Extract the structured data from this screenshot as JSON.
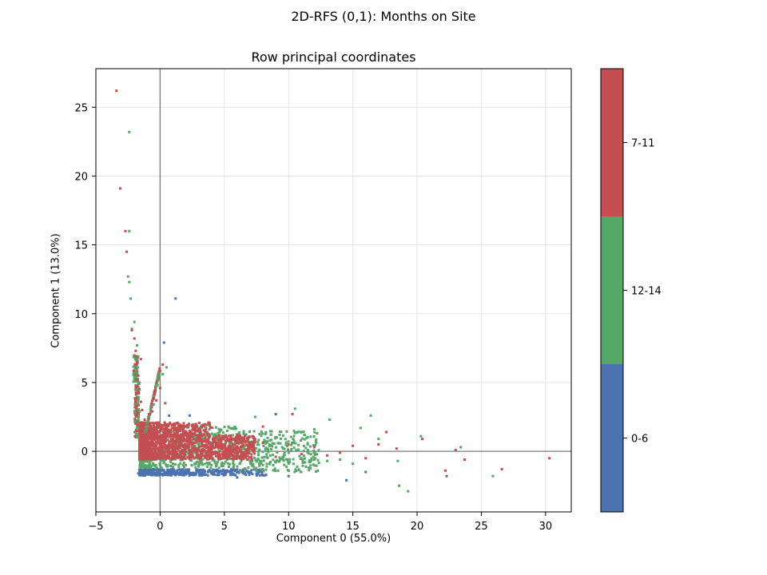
{
  "chart_data": {
    "type": "scatter",
    "suptitle": "2D-RFS (0,1): Months on Site",
    "title": "Row principal coordinates",
    "xlabel": "Component 0 (55.0%)",
    "ylabel": "Component 1 (13.0%)",
    "xlim": [
      -5,
      32
    ],
    "ylim": [
      -4.4,
      27.8
    ],
    "xticks": [
      -5,
      0,
      5,
      10,
      15,
      20,
      25,
      30
    ],
    "yticks": [
      0,
      5,
      10,
      15,
      20,
      25
    ],
    "grid": true,
    "reference_lines": {
      "x": 0,
      "y": 0
    },
    "colorbar": {
      "categories": [
        "0-6",
        "12-14",
        "7-11"
      ],
      "colors": [
        "#4c72b0",
        "#55a868",
        "#c44e52"
      ]
    },
    "series": [
      {
        "name": "0-6",
        "color": "#4c72b0",
        "points": [
          [
            1.2,
            11.1
          ],
          [
            0.3,
            7.9
          ],
          [
            -1.7,
            -1.6
          ],
          [
            -1.4,
            -1.4
          ],
          [
            -1.0,
            -1.5
          ],
          [
            -0.5,
            -1.6
          ],
          [
            0.0,
            -1.5
          ],
          [
            0.5,
            -1.7
          ],
          [
            1.0,
            -1.5
          ],
          [
            1.5,
            -1.7
          ],
          [
            2.0,
            -1.6
          ],
          [
            2.5,
            -1.7
          ],
          [
            3.0,
            -1.5
          ],
          [
            3.5,
            -1.7
          ],
          [
            4.0,
            -1.6
          ],
          [
            4.5,
            -1.4
          ],
          [
            5.0,
            -1.7
          ],
          [
            5.5,
            -1.5
          ],
          [
            6.0,
            -1.9
          ],
          [
            9.0,
            2.7
          ],
          [
            0.7,
            2.6
          ],
          [
            2.3,
            2.6
          ],
          [
            10.0,
            -1.8
          ],
          [
            14.5,
            -2.1
          ],
          [
            22.3,
            -1.8
          ],
          [
            16.0,
            -1.5
          ]
        ]
      },
      {
        "name": "12-14",
        "color": "#55a868",
        "points": [
          [
            -2.4,
            23.2
          ],
          [
            -2.4,
            16.0
          ],
          [
            -2.5,
            12.7
          ],
          [
            -2.4,
            12.3
          ],
          [
            -2.3,
            11.1
          ],
          [
            -2.0,
            9.4
          ],
          [
            -2.2,
            8.9
          ],
          [
            -1.8,
            7.7
          ],
          [
            -1.7,
            6.9
          ],
          [
            -1.6,
            5.0
          ],
          [
            -1.7,
            3.8
          ],
          [
            -1.6,
            2.9
          ],
          [
            -1.4,
            -1.0
          ],
          [
            -0.8,
            -0.9
          ],
          [
            0.0,
            -1.0
          ],
          [
            1.0,
            -0.9
          ],
          [
            2.0,
            -1.0
          ],
          [
            3.0,
            -1.1
          ],
          [
            4.0,
            -1.0
          ],
          [
            5.0,
            -0.9
          ],
          [
            6.0,
            -1.1
          ],
          [
            7.0,
            -0.7
          ],
          [
            8.0,
            -1.0
          ],
          [
            9.0,
            -0.8
          ],
          [
            10.0,
            -0.9
          ],
          [
            11.0,
            -0.5
          ],
          [
            12.0,
            -0.6
          ],
          [
            13.0,
            -0.7
          ],
          [
            14.0,
            -0.6
          ],
          [
            15.0,
            -0.9
          ],
          [
            16.4,
            2.6
          ],
          [
            15.6,
            1.7
          ],
          [
            17.0,
            0.9
          ],
          [
            18.5,
            -0.7
          ],
          [
            19.3,
            -2.9
          ],
          [
            18.6,
            -2.5
          ],
          [
            20.3,
            1.1
          ],
          [
            23.4,
            0.3
          ],
          [
            25.9,
            -1.8
          ],
          [
            7.4,
            2.5
          ],
          [
            10.5,
            3.1
          ],
          [
            12.0,
            1.6
          ],
          [
            13.2,
            2.3
          ],
          [
            0.5,
            6.1
          ],
          [
            0.2,
            5.6
          ],
          [
            -0.2,
            4.8
          ],
          [
            -0.5,
            3.4
          ],
          [
            -0.9,
            2.5
          ],
          [
            4.5,
            1.0
          ],
          [
            5.5,
            0.5
          ],
          [
            6.5,
            0.2
          ],
          [
            8.5,
            0.5
          ],
          [
            9.5,
            0.3
          ],
          [
            11.5,
            0.1
          ]
        ]
      },
      {
        "name": "7-11",
        "color": "#c44e52",
        "points": [
          [
            -3.4,
            26.2
          ],
          [
            -3.1,
            19.1
          ],
          [
            -2.7,
            16.0
          ],
          [
            -2.6,
            14.5
          ],
          [
            -2.2,
            8.8
          ],
          [
            -2.0,
            8.2
          ],
          [
            -1.9,
            7.3
          ],
          [
            -1.8,
            6.4
          ],
          [
            -1.5,
            6.7
          ],
          [
            -1.7,
            5.5
          ],
          [
            -1.6,
            4.5
          ],
          [
            -1.5,
            3.6
          ],
          [
            -1.4,
            3.0
          ],
          [
            -1.2,
            2.3
          ],
          [
            -0.9,
            2.0
          ],
          [
            -0.6,
            2.9
          ],
          [
            -0.3,
            3.7
          ],
          [
            0.0,
            4.6
          ],
          [
            -1.4,
            0.5
          ],
          [
            0.0,
            0.3
          ],
          [
            1.0,
            1.2
          ],
          [
            2.0,
            0.0
          ],
          [
            3.0,
            1.0
          ],
          [
            4.0,
            0.4
          ],
          [
            5.0,
            -0.3
          ],
          [
            6.0,
            1.2
          ],
          [
            7.0,
            0.2
          ],
          [
            8.0,
            0.6
          ],
          [
            9.0,
            -0.4
          ],
          [
            10.0,
            0.5
          ],
          [
            11.0,
            -0.2
          ],
          [
            12.0,
            0.3
          ],
          [
            13.0,
            -0.3
          ],
          [
            14.0,
            -0.1
          ],
          [
            15.0,
            0.4
          ],
          [
            16.0,
            -0.5
          ],
          [
            17.0,
            0.5
          ],
          [
            17.6,
            1.4
          ],
          [
            18.4,
            0.2
          ],
          [
            20.4,
            0.9
          ],
          [
            22.2,
            -1.4
          ],
          [
            23.0,
            0.1
          ],
          [
            23.7,
            -0.6
          ],
          [
            26.6,
            -1.3
          ],
          [
            30.3,
            -0.5
          ],
          [
            10.3,
            2.7
          ],
          [
            8.0,
            1.8
          ],
          [
            0.4,
            3.5
          ],
          [
            0.2,
            6.3
          ]
        ]
      }
    ]
  }
}
